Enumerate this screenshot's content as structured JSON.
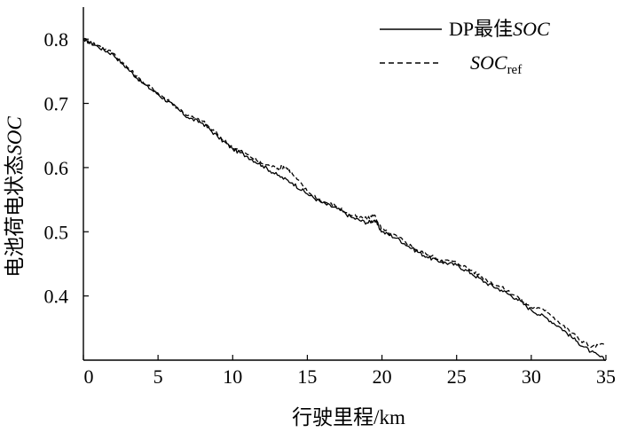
{
  "chart_data": {
    "type": "line",
    "xlabel": "行驶里程/km",
    "ylabel_main": "电池荷电状态",
    "ylabel_italic": "SOC",
    "xlim": [
      0,
      35
    ],
    "ylim": [
      0.3,
      0.85
    ],
    "xticks": [
      "0",
      "5",
      "10",
      "15",
      "20",
      "25",
      "30",
      "35"
    ],
    "yticks": [
      "0.4",
      "0.5",
      "0.6",
      "0.7",
      "0.8"
    ],
    "grid": false,
    "legend_position": "top-right",
    "series": [
      {
        "legend_main": "DP最佳",
        "legend_italic": "SOC",
        "style": "solid",
        "x": [
          0,
          1,
          2,
          3,
          4,
          5,
          6,
          7,
          8,
          9,
          10,
          11,
          12,
          13,
          14,
          15,
          16,
          17,
          18,
          19,
          19.5,
          20,
          21,
          22,
          23,
          24,
          25,
          26,
          27,
          28,
          29,
          30,
          31,
          32,
          33,
          34,
          35
        ],
        "y": [
          0.8,
          0.788,
          0.776,
          0.753,
          0.731,
          0.714,
          0.697,
          0.678,
          0.669,
          0.648,
          0.629,
          0.617,
          0.603,
          0.588,
          0.576,
          0.559,
          0.545,
          0.536,
          0.522,
          0.514,
          0.518,
          0.5,
          0.49,
          0.474,
          0.461,
          0.453,
          0.448,
          0.435,
          0.42,
          0.409,
          0.396,
          0.378,
          0.366,
          0.35,
          0.33,
          0.313,
          0.3
        ]
      },
      {
        "legend_main": "SOC",
        "legend_sub": "ref",
        "style": "dashed",
        "x": [
          0,
          1,
          2,
          3,
          4,
          5,
          6,
          7,
          8,
          9,
          10,
          11,
          12,
          13,
          13.5,
          14,
          15,
          16,
          17,
          18,
          19,
          19.5,
          20,
          21,
          22,
          23,
          24,
          25,
          26,
          27,
          28,
          29,
          30,
          31,
          32,
          33,
          34,
          35
        ],
        "y": [
          0.8,
          0.79,
          0.778,
          0.755,
          0.733,
          0.716,
          0.699,
          0.681,
          0.672,
          0.651,
          0.632,
          0.62,
          0.606,
          0.599,
          0.602,
          0.59,
          0.563,
          0.548,
          0.539,
          0.525,
          0.52,
          0.526,
          0.503,
          0.493,
          0.477,
          0.464,
          0.456,
          0.452,
          0.44,
          0.425,
          0.413,
          0.4,
          0.382,
          0.378,
          0.356,
          0.337,
          0.32,
          0.325
        ]
      }
    ]
  }
}
